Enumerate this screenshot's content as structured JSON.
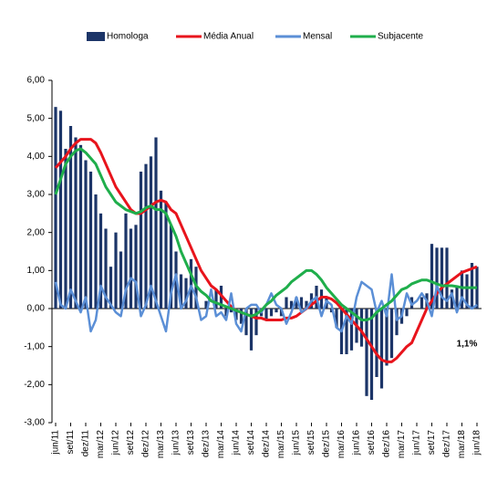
{
  "chart_data": {
    "type": "bar-line",
    "categories": [
      "jun/11",
      null,
      null,
      "set/11",
      null,
      null,
      "dez/11",
      null,
      null,
      "mar/12",
      null,
      null,
      "jun/12",
      null,
      null,
      "set/12",
      null,
      null,
      "dez/12",
      null,
      null,
      "mar/13",
      null,
      null,
      "jun/13",
      null,
      null,
      "set/13",
      null,
      null,
      "dez/13",
      null,
      null,
      "mar/14",
      null,
      null,
      "jun/14",
      null,
      null,
      "set/14",
      null,
      null,
      "dez/14",
      null,
      null,
      "mar/15",
      null,
      null,
      "jun/15",
      null,
      null,
      "set/15",
      null,
      null,
      "dez/15",
      null,
      null,
      "mar/16",
      null,
      null,
      "jun/16",
      null,
      null,
      "set/16",
      null,
      null,
      "dez/16",
      null,
      null,
      "mar/17",
      null,
      null,
      "jun/17",
      null,
      null,
      "set/17",
      null,
      null,
      "dez/17",
      null,
      null,
      "mar/18",
      null,
      null,
      "jun/18"
    ],
    "series": [
      {
        "name": "Homologa",
        "kind": "bar",
        "color": "#1c3568",
        "values": [
          5.3,
          5.2,
          4.2,
          4.8,
          4.5,
          4.3,
          3.9,
          3.6,
          3.0,
          2.5,
          2.1,
          1.1,
          2.0,
          1.5,
          2.5,
          2.1,
          2.2,
          3.6,
          3.8,
          4.0,
          4.5,
          3.1,
          2.8,
          2.2,
          1.5,
          0.9,
          0.8,
          1.3,
          1.1,
          0.0,
          0.2,
          0.0,
          0.5,
          0.6,
          -0.2,
          -0.1,
          -0.3,
          -0.4,
          -0.7,
          -1.1,
          -0.7,
          -0.2,
          -0.3,
          -0.2,
          -0.1,
          -0.2,
          0.3,
          0.2,
          0.3,
          0.3,
          0.2,
          0.4,
          0.6,
          0.5,
          0.3,
          -0.1,
          -0.5,
          -1.2,
          -1.2,
          -1.1,
          -0.9,
          -1.0,
          -2.3,
          -2.4,
          -1.8,
          -2.1,
          -1.5,
          -1.3,
          -0.7,
          -0.4,
          -0.2,
          0.3,
          0.0,
          0.3,
          0.4,
          1.7,
          1.6,
          1.6,
          1.6,
          0.5,
          0.6,
          1.0,
          0.9,
          1.2,
          1.1
        ]
      },
      {
        "name": "Média Anual",
        "kind": "line",
        "color": "#e8141c",
        "values": [
          3.7,
          3.85,
          4.0,
          4.2,
          4.35,
          4.45,
          4.45,
          4.45,
          4.35,
          4.1,
          3.8,
          3.5,
          3.2,
          3.0,
          2.8,
          2.6,
          2.5,
          2.5,
          2.6,
          2.7,
          2.8,
          2.85,
          2.8,
          2.6,
          2.5,
          2.2,
          1.9,
          1.6,
          1.3,
          1.0,
          0.8,
          0.6,
          0.5,
          0.35,
          0.2,
          0.05,
          -0.05,
          -0.1,
          -0.15,
          -0.2,
          -0.25,
          -0.25,
          -0.3,
          -0.3,
          -0.3,
          -0.3,
          -0.25,
          -0.25,
          -0.2,
          -0.1,
          0.0,
          0.1,
          0.2,
          0.3,
          0.3,
          0.25,
          0.15,
          0.0,
          -0.15,
          -0.3,
          -0.45,
          -0.6,
          -0.8,
          -1.0,
          -1.2,
          -1.35,
          -1.4,
          -1.4,
          -1.3,
          -1.15,
          -1.0,
          -0.9,
          -0.6,
          -0.3,
          0.0,
          0.2,
          0.4,
          0.55,
          0.65,
          0.75,
          0.85,
          0.95,
          1.0,
          1.05,
          1.1
        ]
      },
      {
        "name": "Mensal",
        "kind": "line",
        "color": "#5b8fd6",
        "values": [
          0.7,
          0.1,
          0.0,
          0.5,
          0.2,
          -0.1,
          0.3,
          -0.6,
          -0.3,
          0.6,
          0.3,
          0.1,
          -0.1,
          -0.2,
          0.5,
          0.8,
          0.7,
          -0.2,
          0.1,
          0.6,
          0.2,
          -0.2,
          -0.6,
          0.4,
          0.9,
          0.0,
          0.2,
          0.6,
          0.3,
          -0.3,
          -0.2,
          0.5,
          -0.2,
          -0.1,
          -0.3,
          0.4,
          -0.4,
          -0.6,
          0.0,
          0.1,
          0.1,
          -0.1,
          0.1,
          0.4,
          0.1,
          0.0,
          -0.4,
          -0.1,
          0.3,
          -0.1,
          0.0,
          0.2,
          0.3,
          -0.2,
          0.2,
          0.1,
          -0.5,
          -0.6,
          -0.2,
          -0.4,
          0.3,
          0.7,
          0.6,
          0.5,
          -0.1,
          0.2,
          -0.2,
          0.9,
          -0.3,
          -0.2,
          0.4,
          0.1,
          0.2,
          0.4,
          0.2,
          -0.2,
          0.6,
          0.3,
          0.2,
          0.4,
          -0.1,
          0.3,
          0.1,
          0.0,
          0.1
        ]
      },
      {
        "name": "Subjacente",
        "kind": "line",
        "color": "#1fae4b",
        "values": [
          3.0,
          3.4,
          3.8,
          4.0,
          4.15,
          4.2,
          4.1,
          3.95,
          3.8,
          3.5,
          3.2,
          3.0,
          2.8,
          2.7,
          2.6,
          2.55,
          2.5,
          2.55,
          2.65,
          2.7,
          2.6,
          2.6,
          2.5,
          2.2,
          1.9,
          1.5,
          1.2,
          0.9,
          0.6,
          0.45,
          0.35,
          0.2,
          0.15,
          0.1,
          0.05,
          0.0,
          -0.05,
          -0.1,
          -0.15,
          -0.2,
          -0.15,
          -0.05,
          0.1,
          0.2,
          0.35,
          0.45,
          0.55,
          0.7,
          0.8,
          0.9,
          1.0,
          1.0,
          0.9,
          0.75,
          0.55,
          0.4,
          0.25,
          0.1,
          0.0,
          -0.1,
          -0.2,
          -0.3,
          -0.3,
          -0.25,
          -0.1,
          0.0,
          0.1,
          0.2,
          0.35,
          0.5,
          0.55,
          0.65,
          0.7,
          0.75,
          0.75,
          0.7,
          0.65,
          0.6,
          0.6,
          0.6,
          0.58,
          0.55,
          0.55,
          0.55,
          0.55
        ]
      }
    ],
    "ylim": [
      -3,
      6
    ],
    "yticks": [
      {
        "value": 6,
        "label": "6,00"
      },
      {
        "value": 5,
        "label": "5,00"
      },
      {
        "value": 4,
        "label": "4,00"
      },
      {
        "value": 3,
        "label": "3,00"
      },
      {
        "value": 2,
        "label": "2,00"
      },
      {
        "value": 1,
        "label": "1,00"
      },
      {
        "value": 0,
        "label": "0,00"
      },
      {
        "value": -1,
        "label": "-1,00"
      },
      {
        "value": -2,
        "label": "-2,00"
      },
      {
        "value": -3,
        "label": "-3,00"
      }
    ],
    "annotation": "1,1%",
    "legend": "top"
  }
}
